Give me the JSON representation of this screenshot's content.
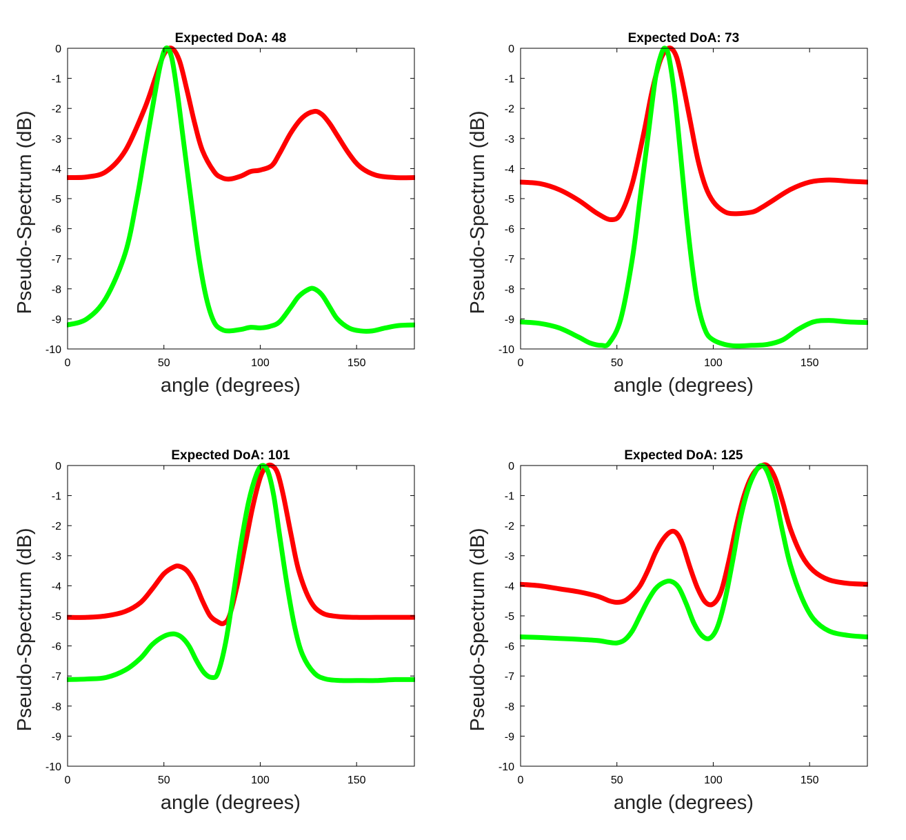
{
  "colors": {
    "series_a": "#ff0000",
    "series_b": "#00ff00",
    "axis": "#000000"
  },
  "chart_data": [
    {
      "type": "line",
      "title": "Expected DoA: 48",
      "xlabel": "angle (degrees)",
      "ylabel": "Pseudo-Spectrum (dB)",
      "xlim": [
        0,
        180
      ],
      "ylim": [
        -10,
        0
      ],
      "xticks": [
        0,
        50,
        100,
        150
      ],
      "yticks": [
        0,
        -1,
        -2,
        -3,
        -4,
        -5,
        -6,
        -7,
        -8,
        -9,
        -10
      ],
      "grid": false,
      "series": [
        {
          "name": "red",
          "color": "#ff0000",
          "x": [
            0,
            10,
            20,
            30,
            40,
            46,
            50,
            54,
            58,
            62,
            66,
            70,
            76,
            80,
            84,
            90,
            95,
            100,
            106,
            110,
            116,
            122,
            128,
            132,
            136,
            140,
            146,
            152,
            160,
            170,
            180
          ],
          "y": [
            -4.3,
            -4.28,
            -4.1,
            -3.4,
            -2.0,
            -0.9,
            -0.2,
            0.0,
            -0.4,
            -1.4,
            -2.5,
            -3.4,
            -4.1,
            -4.3,
            -4.35,
            -4.25,
            -4.1,
            -4.05,
            -3.9,
            -3.5,
            -2.8,
            -2.3,
            -2.1,
            -2.2,
            -2.5,
            -2.9,
            -3.5,
            -3.95,
            -4.22,
            -4.3,
            -4.3
          ]
        },
        {
          "name": "green",
          "color": "#00ff00",
          "x": [
            0,
            10,
            20,
            30,
            36,
            40,
            44,
            48,
            51,
            54,
            57,
            60,
            64,
            68,
            72,
            76,
            80,
            84,
            90,
            95,
            100,
            105,
            110,
            116,
            120,
            125,
            128,
            132,
            136,
            140,
            146,
            152,
            158,
            165,
            172,
            180
          ],
          "y": [
            -9.2,
            -9.0,
            -8.3,
            -6.8,
            -5.0,
            -3.5,
            -2.0,
            -0.6,
            0.0,
            -0.3,
            -1.5,
            -3.0,
            -5.0,
            -6.9,
            -8.3,
            -9.1,
            -9.35,
            -9.4,
            -9.35,
            -9.28,
            -9.3,
            -9.25,
            -9.1,
            -8.6,
            -8.25,
            -8.02,
            -8.0,
            -8.2,
            -8.6,
            -9.0,
            -9.3,
            -9.4,
            -9.4,
            -9.3,
            -9.22,
            -9.2
          ]
        }
      ]
    },
    {
      "type": "line",
      "title": "Expected DoA: 73",
      "xlabel": "angle (degrees)",
      "ylabel": "Pseudo-Spectrum (dB)",
      "xlim": [
        0,
        180
      ],
      "ylim": [
        -10,
        0
      ],
      "xticks": [
        0,
        50,
        100,
        150
      ],
      "yticks": [
        0,
        -1,
        -2,
        -3,
        -4,
        -5,
        -6,
        -7,
        -8,
        -9,
        -10
      ],
      "grid": false,
      "series": [
        {
          "name": "red",
          "color": "#ff0000",
          "x": [
            0,
            10,
            20,
            30,
            40,
            47,
            52,
            58,
            64,
            68,
            72,
            75,
            78,
            81,
            84,
            88,
            92,
            96,
            100,
            105,
            110,
            120,
            125,
            130,
            140,
            150,
            160,
            170,
            180
          ],
          "y": [
            -4.45,
            -4.5,
            -4.7,
            -5.05,
            -5.5,
            -5.7,
            -5.5,
            -4.5,
            -2.8,
            -1.5,
            -0.5,
            -0.1,
            0.0,
            -0.3,
            -1.1,
            -2.4,
            -3.7,
            -4.6,
            -5.1,
            -5.4,
            -5.5,
            -5.45,
            -5.3,
            -5.1,
            -4.7,
            -4.45,
            -4.38,
            -4.42,
            -4.45
          ]
        },
        {
          "name": "green",
          "color": "#00ff00",
          "x": [
            0,
            10,
            20,
            30,
            36,
            42,
            46,
            52,
            58,
            62,
            66,
            70,
            73,
            75,
            77,
            80,
            83,
            86,
            89,
            92,
            96,
            100,
            106,
            112,
            120,
            128,
            136,
            144,
            152,
            160,
            170,
            180
          ],
          "y": [
            -9.1,
            -9.15,
            -9.3,
            -9.6,
            -9.8,
            -9.88,
            -9.8,
            -9.0,
            -7.0,
            -5.0,
            -3.0,
            -1.0,
            -0.2,
            0.0,
            -0.3,
            -1.6,
            -3.5,
            -5.5,
            -7.2,
            -8.5,
            -9.4,
            -9.7,
            -9.85,
            -9.9,
            -9.88,
            -9.85,
            -9.7,
            -9.35,
            -9.1,
            -9.05,
            -9.1,
            -9.12
          ]
        }
      ]
    },
    {
      "type": "line",
      "title": "Expected DoA: 101",
      "xlabel": "angle (degrees)",
      "ylabel": "Pseudo-Spectrum (dB)",
      "xlim": [
        0,
        180
      ],
      "ylim": [
        -10,
        0
      ],
      "xticks": [
        0,
        50,
        100,
        150
      ],
      "yticks": [
        0,
        -1,
        -2,
        -3,
        -4,
        -5,
        -6,
        -7,
        -8,
        -9,
        -10
      ],
      "grid": false,
      "series": [
        {
          "name": "red",
          "color": "#ff0000",
          "x": [
            0,
            10,
            20,
            30,
            38,
            44,
            50,
            55,
            58,
            62,
            66,
            70,
            74,
            78,
            81,
            84,
            88,
            92,
            96,
            100,
            103,
            106,
            109,
            112,
            116,
            120,
            126,
            132,
            140,
            150,
            160,
            170,
            180
          ],
          "y": [
            -5.05,
            -5.05,
            -5.0,
            -4.85,
            -4.55,
            -4.1,
            -3.6,
            -3.38,
            -3.35,
            -3.5,
            -3.9,
            -4.5,
            -5.0,
            -5.2,
            -5.25,
            -5.0,
            -4.0,
            -2.7,
            -1.4,
            -0.4,
            -0.05,
            0.0,
            -0.25,
            -1.0,
            -2.3,
            -3.5,
            -4.5,
            -4.9,
            -5.02,
            -5.05,
            -5.05,
            -5.05,
            -5.05
          ]
        },
        {
          "name": "green",
          "color": "#00ff00",
          "x": [
            0,
            10,
            20,
            30,
            38,
            44,
            50,
            55,
            59,
            63,
            67,
            71,
            75,
            78,
            82,
            86,
            90,
            94,
            98,
            101,
            104,
            107,
            110,
            114,
            118,
            122,
            128,
            134,
            142,
            150,
            160,
            170,
            180
          ],
          "y": [
            -7.12,
            -7.1,
            -7.05,
            -6.8,
            -6.4,
            -5.95,
            -5.68,
            -5.6,
            -5.7,
            -6.0,
            -6.5,
            -6.9,
            -7.05,
            -6.9,
            -5.9,
            -4.3,
            -2.6,
            -1.2,
            -0.3,
            0.0,
            -0.2,
            -1.0,
            -2.3,
            -4.0,
            -5.4,
            -6.3,
            -6.9,
            -7.1,
            -7.15,
            -7.15,
            -7.15,
            -7.12,
            -7.12
          ]
        }
      ]
    },
    {
      "type": "line",
      "title": "Expected DoA: 125",
      "xlabel": "angle (degrees)",
      "ylabel": "Pseudo-Spectrum (dB)",
      "xlim": [
        0,
        180
      ],
      "ylim": [
        -10,
        0
      ],
      "xticks": [
        0,
        50,
        100,
        150
      ],
      "yticks": [
        0,
        -1,
        -2,
        -3,
        -4,
        -5,
        -6,
        -7,
        -8,
        -9,
        -10
      ],
      "grid": false,
      "series": [
        {
          "name": "red",
          "color": "#ff0000",
          "x": [
            0,
            10,
            20,
            30,
            40,
            46,
            50,
            54,
            58,
            62,
            66,
            70,
            74,
            78,
            81,
            84,
            88,
            92,
            96,
            100,
            104,
            108,
            112,
            116,
            120,
            124,
            128,
            132,
            136,
            140,
            146,
            152,
            160,
            170,
            180
          ],
          "y": [
            -3.95,
            -4.0,
            -4.1,
            -4.2,
            -4.35,
            -4.5,
            -4.55,
            -4.5,
            -4.3,
            -4.0,
            -3.5,
            -2.9,
            -2.45,
            -2.2,
            -2.25,
            -2.6,
            -3.4,
            -4.1,
            -4.55,
            -4.6,
            -4.2,
            -3.2,
            -2.0,
            -1.0,
            -0.35,
            -0.05,
            0.0,
            -0.4,
            -1.2,
            -2.1,
            -3.0,
            -3.5,
            -3.8,
            -3.92,
            -3.95
          ]
        },
        {
          "name": "green",
          "color": "#00ff00",
          "x": [
            0,
            10,
            20,
            30,
            40,
            46,
            50,
            54,
            58,
            62,
            66,
            70,
            74,
            78,
            82,
            86,
            90,
            94,
            98,
            102,
            106,
            110,
            114,
            118,
            122,
            125,
            128,
            132,
            136,
            140,
            146,
            152,
            160,
            170,
            180
          ],
          "y": [
            -5.7,
            -5.72,
            -5.75,
            -5.78,
            -5.82,
            -5.88,
            -5.9,
            -5.8,
            -5.5,
            -5.0,
            -4.5,
            -4.1,
            -3.9,
            -3.85,
            -4.05,
            -4.6,
            -5.25,
            -5.65,
            -5.75,
            -5.4,
            -4.5,
            -3.2,
            -1.8,
            -0.8,
            -0.2,
            0.0,
            -0.2,
            -1.0,
            -2.2,
            -3.3,
            -4.4,
            -5.1,
            -5.5,
            -5.65,
            -5.7
          ]
        }
      ]
    }
  ]
}
